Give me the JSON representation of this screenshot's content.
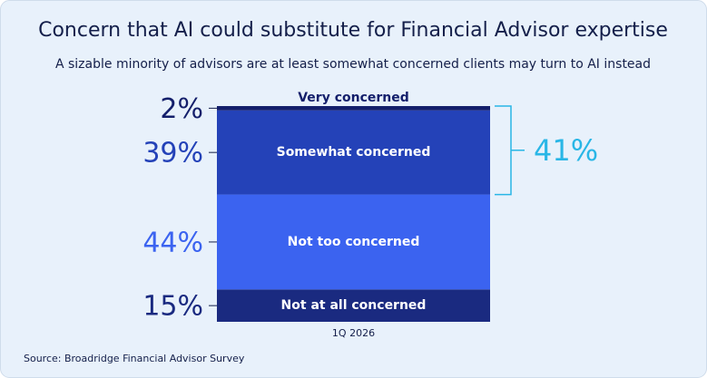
{
  "chart_data": {
    "type": "stacked_bar",
    "title": "Concern that AI could substitute for Financial Advisor expertise",
    "subtitle": "A sizable minority of advisors are at least somewhat concerned clients may turn to AI instead",
    "categories": [
      "1Q 2026"
    ],
    "series": [
      {
        "name": "Not at all concerned",
        "color": "#1a2a80",
        "values": [
          15
        ],
        "value_labels": [
          "15%"
        ]
      },
      {
        "name": "Not too concerned",
        "color": "#3b63f0",
        "values": [
          44
        ],
        "value_labels": [
          "44%"
        ]
      },
      {
        "name": "Somewhat concerned",
        "color": "#2442b8",
        "values": [
          39
        ],
        "value_labels": [
          "39%"
        ]
      },
      {
        "name": "Very concerned",
        "color": "#141f6b",
        "values": [
          2
        ],
        "value_labels": [
          "2%"
        ]
      }
    ],
    "ylim": [
      0,
      100
    ],
    "annotation": {
      "value": 41,
      "label": "41%",
      "color": "#29b6e6"
    }
  },
  "source": "Source: Broadridge Financial Advisor Survey"
}
